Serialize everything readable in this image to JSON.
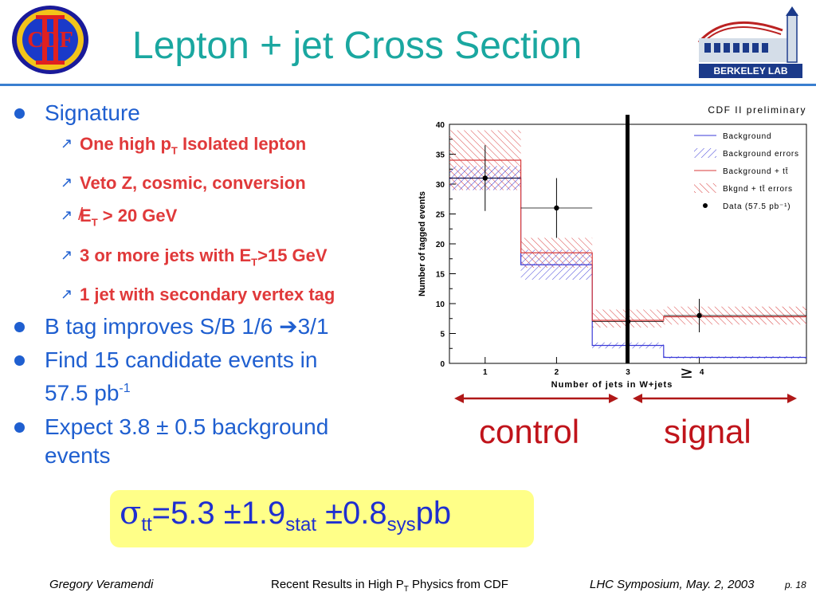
{
  "logos": {
    "cdf_text": "CDF",
    "berkeley_text": "BERKELEY LAB"
  },
  "title": "Lepton + jet Cross Section",
  "bullets": {
    "b1": "Signature",
    "sub1": "One high p",
    "sub1_sub": "T",
    "sub1_rest": " Isolated lepton",
    "sub2": "Veto Z, cosmic, conversion",
    "sub3_e": "E",
    "sub3_sub": "T",
    "sub3_rest": " > 20 GeV",
    "sub4": "3 or more jets with E",
    "sub4_sub": "T",
    "sub4_rest": ">15 GeV",
    "sub5": "1 jet with secondary vertex tag",
    "b2": "B tag improves S/B 1/6 ",
    "b2_arrow": "➔",
    "b2_rest": "3/1",
    "b3_line1": "Find 15 candidate events in",
    "b3_line2": "57.5 pb",
    "b3_sup": "-1",
    "b4_line1": "Expect 3.8 ± 0.5 background",
    "b4_line2": "events"
  },
  "chart_labels": {
    "control": "control",
    "signal": "signal"
  },
  "result": {
    "sigma": "σ",
    "tt": "tt",
    "value": "=5.3 ±1.9",
    "stat": "stat",
    "value2": " ±0.8",
    "sys": "sys",
    "unit": "pb"
  },
  "footer": {
    "author": "Gregory Veramendi",
    "talk_main": "Recent Results in High P",
    "talk_sub": "T",
    "talk_rest": " Physics from CDF",
    "venue": "LHC Symposium, May. 2, 2003",
    "page": "p. 18"
  },
  "chart_data": {
    "type": "bar",
    "title": "CDF II preliminary",
    "xlabel": "Number of jets in W+jets",
    "ylabel": "Number of tagged events",
    "xlim": [
      0.5,
      5.5
    ],
    "ylim": [
      0,
      40
    ],
    "categories": [
      "1",
      "2",
      "3",
      "≥ 4"
    ],
    "x_ticks": [
      "1",
      "2",
      "3",
      "4"
    ],
    "y_ticks": [
      "0",
      "5",
      "10",
      "15",
      "20",
      "25",
      "30",
      "35",
      "40"
    ],
    "legend": {
      "placement": "top-right",
      "entries": [
        "Background",
        "Background errors",
        "Background + tt̄",
        "Bkgnd + tt̄ errors",
        "Data (57.5 pb⁻¹)"
      ]
    },
    "series": [
      {
        "name": "Background",
        "values": [
          31,
          16.5,
          3,
          1
        ],
        "color": "#3b3bd8"
      },
      {
        "name": "Background errors",
        "low": [
          29,
          14,
          2.5,
          0.8
        ],
        "high": [
          33,
          19,
          3.5,
          1.2
        ],
        "color": "#3b3bd8"
      },
      {
        "name": "Background + tt̄",
        "values": [
          34,
          18.5,
          7.2,
          7.8
        ],
        "color": "#d83b3b"
      },
      {
        "name": "Bkgnd + tt̄ errors",
        "low": [
          29,
          16,
          6,
          6.5
        ],
        "high": [
          39,
          21,
          9,
          9.5
        ],
        "color": "#d83b3b"
      },
      {
        "name": "Data (57.5 pb⁻¹)",
        "values": [
          31,
          26,
          7,
          8
        ],
        "err": [
          5.5,
          5,
          2.7,
          2.8
        ],
        "color": "#000000"
      }
    ],
    "grid": false
  }
}
